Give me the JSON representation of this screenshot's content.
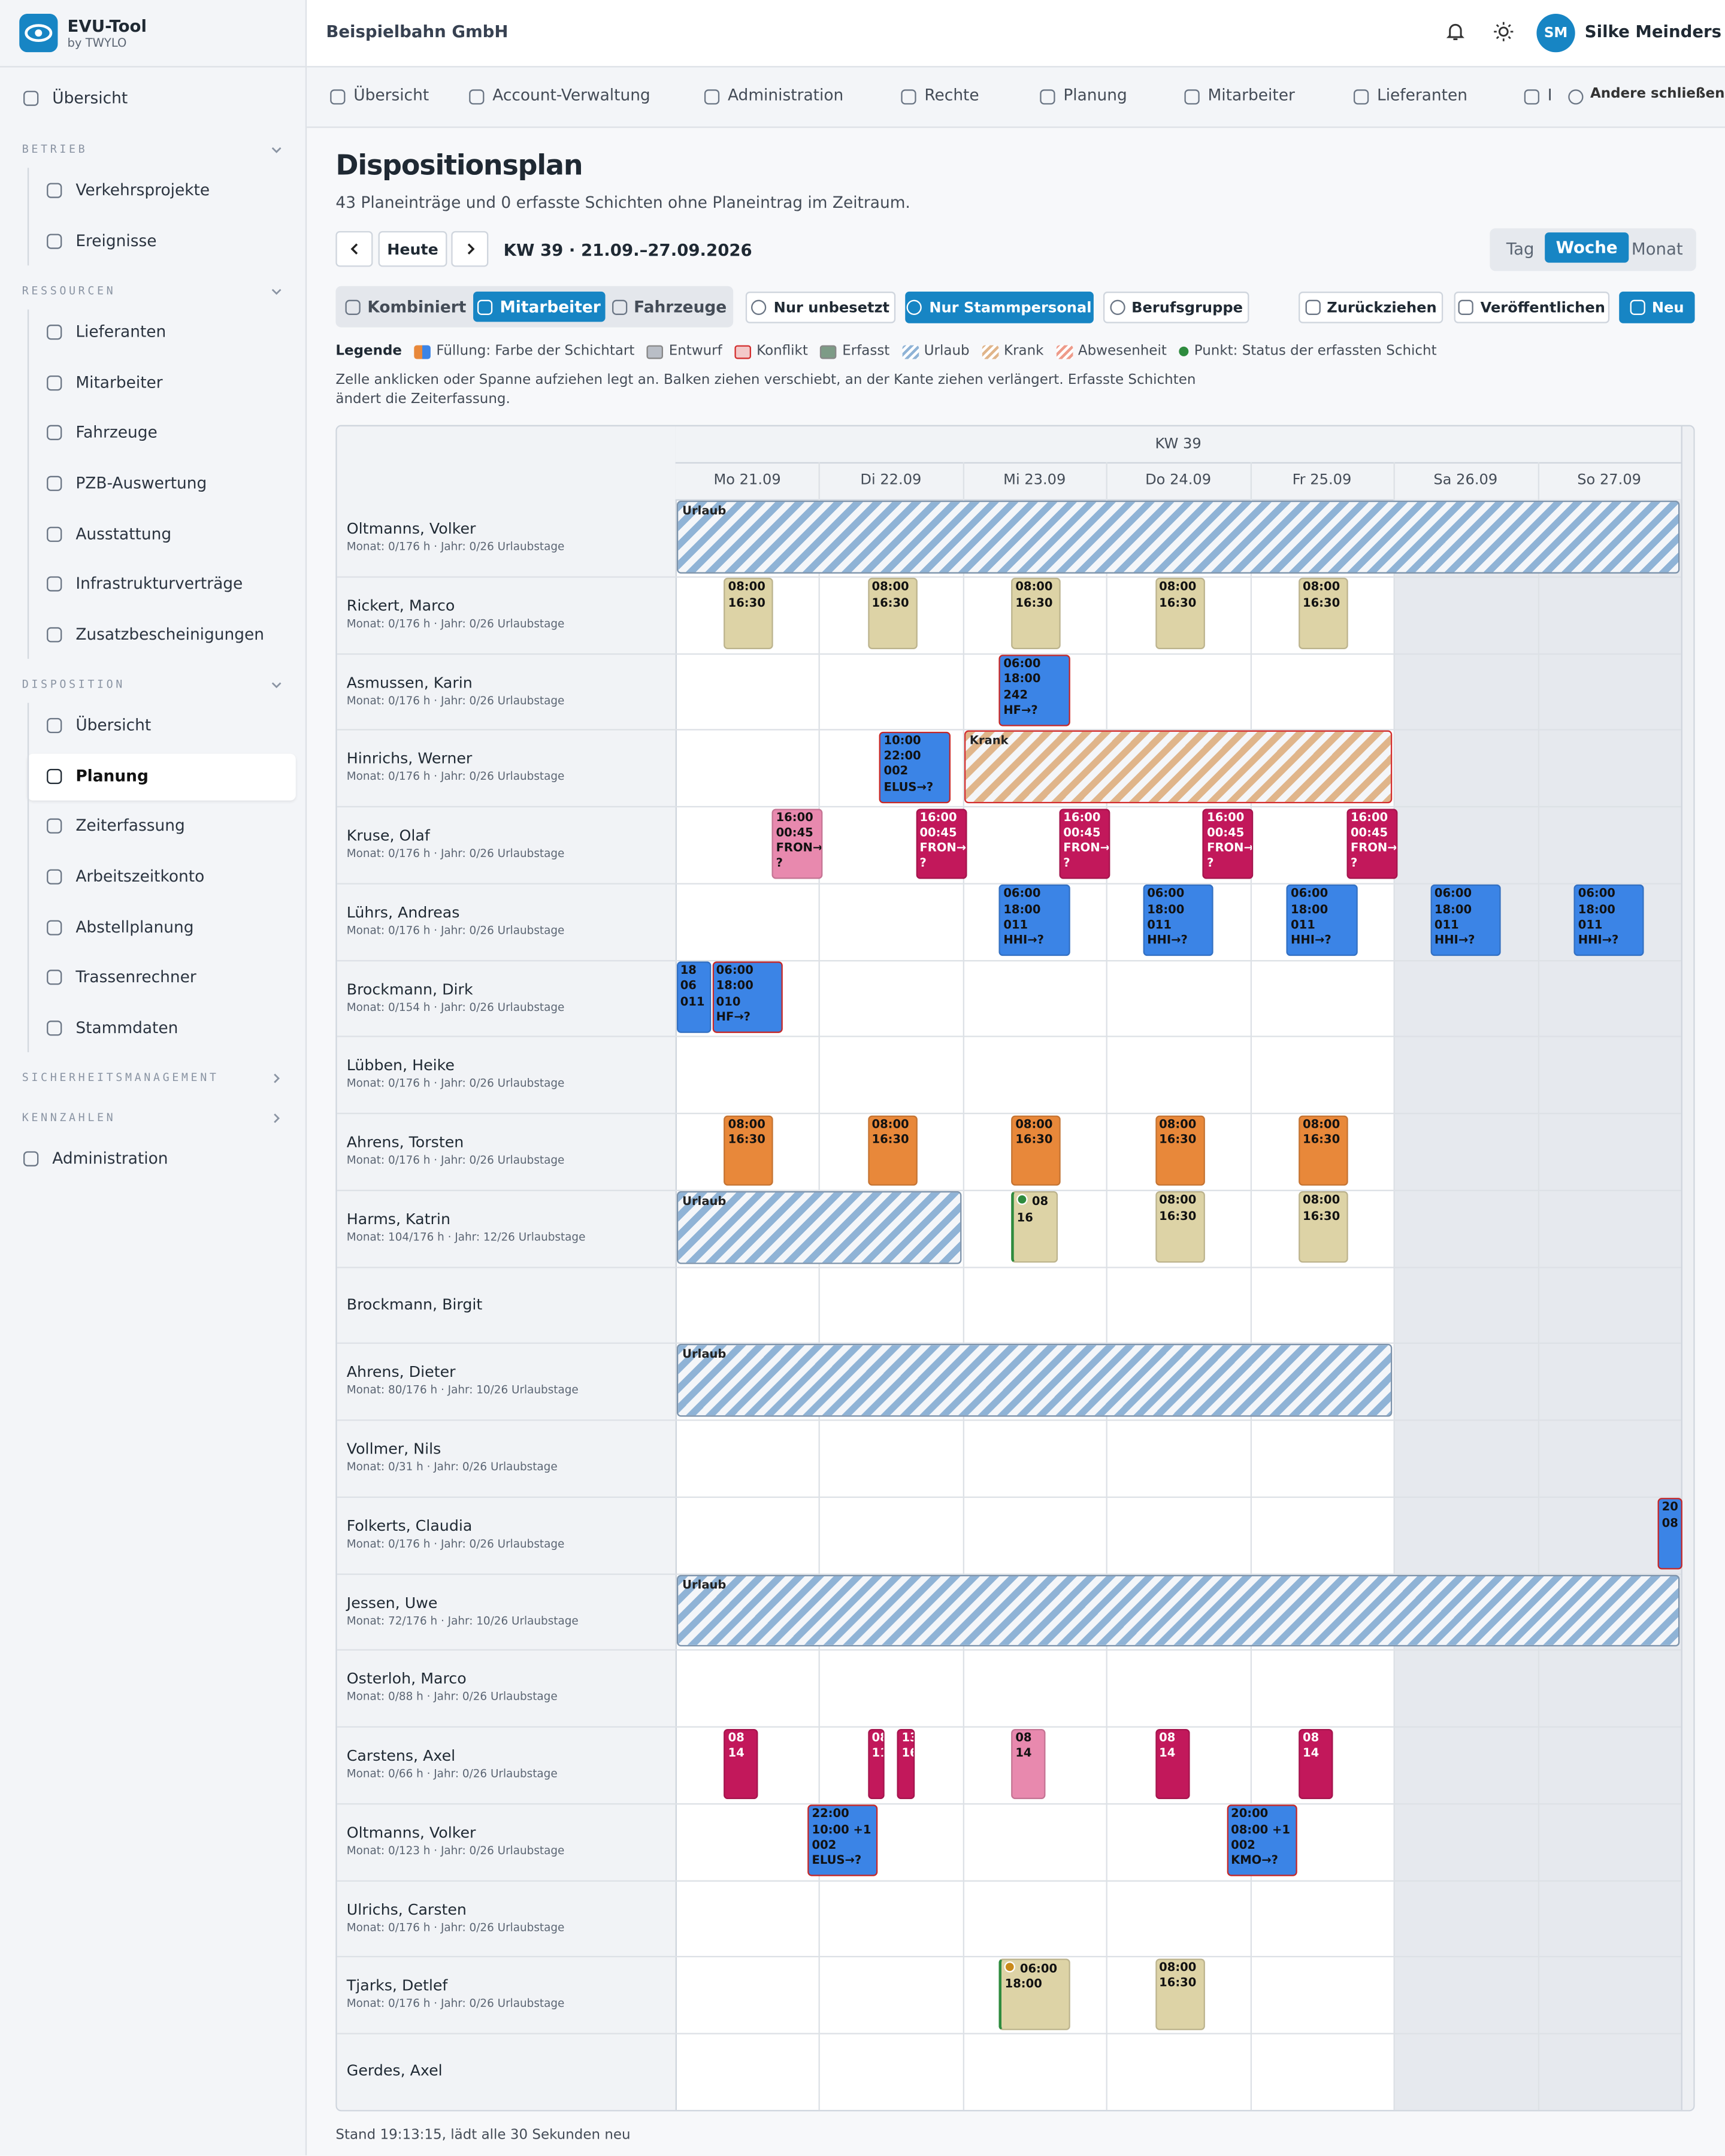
{
  "sidebar": {
    "brand": "EVU-Tool",
    "brand_sub": "by TWYLO",
    "top": "Übersicht",
    "sections": [
      {
        "title": "BETRIEB",
        "items": [
          "Verkehrsprojekte",
          "Ereignisse"
        ]
      },
      {
        "title": "RESSOURCEN",
        "items": [
          "Lieferanten",
          "Mitarbeiter",
          "Fahrzeuge",
          "PZB-Auswertung",
          "Ausstattung",
          "Infrastrukturverträge",
          "Zusatzbescheinigungen"
        ]
      },
      {
        "title": "DISPOSITION",
        "items": [
          "Übersicht",
          "Planung",
          "Zeiterfassung",
          "Arbeitszeitkonto",
          "Abstellplanung",
          "Trassenrechner",
          "Stammdaten"
        ],
        "active": 1
      },
      {
        "title": "SICHERHEITSMANAGEMENT",
        "items": []
      },
      {
        "title": "KENNZAHLEN",
        "items": []
      }
    ],
    "bottom": "Administration"
  },
  "header": {
    "company": "Beispielbahn GmbH",
    "initials": "SM",
    "user": "Silke Meinders"
  },
  "tabs": [
    "Übersicht",
    "Account-Verwaltung",
    "Administration",
    "Rechte",
    "Planung",
    "Mitarbeiter",
    "Lieferanten",
    "I"
  ],
  "close_others": "Andere schließen",
  "page": {
    "title": "Dispositionsplan",
    "subtitle": "43 Planeinträge und 0 erfasste Schichten ohne Planeintrag im Zeitraum.",
    "today": "Heute",
    "range": "KW 39 · 21.09.–27.09.2026",
    "views": [
      "Tag",
      "Woche",
      "Monat"
    ],
    "active_view": 1,
    "modes": [
      "Kombiniert",
      "Mitarbeiter",
      "Fahrzeuge"
    ],
    "active_mode": 1,
    "filters": [
      "Nur unbesetzt",
      "Nur Stammpersonal",
      "Berufsgruppe"
    ],
    "active_filter": 1,
    "actions": [
      "Zurückziehen",
      "Veröffentlichen",
      "Neu"
    ],
    "legend_title": "Legende",
    "legend": [
      {
        "label": "Füllung: Farbe der Schichtart",
        "style": "split",
        "color": "#e8883a"
      },
      {
        "label": "Entwurf",
        "style": "solid",
        "color": "#b9bec6"
      },
      {
        "label": "Konflikt",
        "style": "border",
        "color": "#d32f2f"
      },
      {
        "label": "Erfasst",
        "style": "solid",
        "color": "#7d9b86"
      },
      {
        "label": "Urlaub",
        "style": "stripes",
        "color": "#8fb3d6"
      },
      {
        "label": "Krank",
        "style": "stripes",
        "color": "#e0b58a"
      },
      {
        "label": "Abwesenheit",
        "style": "stripes",
        "color": "#ee9b8a"
      },
      {
        "label": "Punkt: Status der erfassten Schicht",
        "style": "dot",
        "color": "#2e8b3e"
      }
    ],
    "hint": "Zelle anklicken oder Spanne aufziehen legt an. Balken ziehen verschiebt, an der Kante ziehen verlängert. Erfasste Schichten ändert die Zeiterfassung."
  },
  "grid": {
    "week": "KW 39",
    "days": [
      "Mo 21.09",
      "Di 22.09",
      "Mi 23.09",
      "Do 24.09",
      "Fr 25.09",
      "Sa 26.09",
      "So 27.09"
    ],
    "rows": [
      {
        "name": "Oltmanns, Volker",
        "info": "Monat: 0/176 h · Jahr: 0/26 Urlaubstage",
        "spans": [
          {
            "label": "Urlaub",
            "from": 0,
            "to": 6,
            "color": "#8fb3d6"
          }
        ]
      },
      {
        "name": "Rickert, Marco",
        "info": "Monat: 0/176 h · Jahr: 0/26 Urlaubstage",
        "shifts": [
          {
            "day": 0,
            "lines": [
              "08:00",
              "16:30"
            ],
            "color": "#ddd3a6"
          },
          {
            "day": 1,
            "lines": [
              "08:00",
              "16:30"
            ],
            "color": "#ddd3a6"
          },
          {
            "day": 2,
            "lines": [
              "08:00",
              "16:30"
            ],
            "color": "#ddd3a6"
          },
          {
            "day": 3,
            "lines": [
              "08:00",
              "16:30"
            ],
            "color": "#ddd3a6"
          },
          {
            "day": 4,
            "lines": [
              "08:00",
              "16:30"
            ],
            "color": "#ddd3a6"
          }
        ]
      },
      {
        "name": "Asmussen, Karin",
        "info": "Monat: 0/176 h · Jahr: 0/26 Urlaubstage",
        "shifts": [
          {
            "day": 2,
            "lines": [
              "06:00",
              "18:00",
              "242",
              "HF→?"
            ],
            "color": "#3b84e6",
            "conflict": true
          }
        ]
      },
      {
        "name": "Hinrichs, Werner",
        "info": "Monat: 0/176 h · Jahr: 0/26 Urlaubstage",
        "shifts": [
          {
            "day": 1,
            "lines": [
              "10:00",
              "22:00",
              "002",
              "ELUS→?"
            ],
            "color": "#3b84e6",
            "conflict": true
          }
        ],
        "spans": [
          {
            "label": "Krank",
            "from": 2,
            "to": 4,
            "color": "#e0b58a",
            "conflict": true
          }
        ]
      },
      {
        "name": "Kruse, Olaf",
        "info": "Monat: 0/176 h · Jahr: 0/26 Urlaubstage",
        "shifts": [
          {
            "day": 0,
            "lines": [
              "16:00",
              "00:45",
              "FRON→",
              "?"
            ],
            "color": "#e889ae"
          },
          {
            "day": 1,
            "lines": [
              "16:00",
              "00:45",
              "FRON→",
              "?"
            ],
            "color": "#c2185b"
          },
          {
            "day": 2,
            "lines": [
              "16:00",
              "00:45",
              "FRON→",
              "?"
            ],
            "color": "#c2185b"
          },
          {
            "day": 3,
            "lines": [
              "16:00",
              "00:45",
              "FRON→",
              "?"
            ],
            "color": "#c2185b"
          },
          {
            "day": 4,
            "lines": [
              "16:00",
              "00:45",
              "FRON→",
              "?"
            ],
            "color": "#c2185b"
          }
        ]
      },
      {
        "name": "Lührs, Andreas",
        "info": "Monat: 0/176 h · Jahr: 0/26 Urlaubstage",
        "shifts": [
          {
            "day": 2,
            "lines": [
              "06:00",
              "18:00",
              "011",
              "HHI→?"
            ],
            "color": "#3b84e6"
          },
          {
            "day": 3,
            "lines": [
              "06:00",
              "18:00",
              "011",
              "HHI→?"
            ],
            "color": "#3b84e6"
          },
          {
            "day": 4,
            "lines": [
              "06:00",
              "18:00",
              "011",
              "HHI→?"
            ],
            "color": "#3b84e6"
          },
          {
            "day": 5,
            "lines": [
              "06:00",
              "18:00",
              "011",
              "HHI→?"
            ],
            "color": "#3b84e6"
          },
          {
            "day": 6,
            "lines": [
              "06:00",
              "18:00",
              "011",
              "HHI→?"
            ],
            "color": "#3b84e6"
          }
        ]
      },
      {
        "name": "Brockmann, Dirk",
        "info": "Monat: 0/154 h · Jahr: 0/26 Urlaubstage",
        "shifts": [
          {
            "day": -1,
            "lines": [
              "18",
              "06",
              "011"
            ],
            "color": "#3b84e6"
          },
          {
            "day": 0,
            "lines": [
              "06:00",
              "18:00",
              "010",
              "HF→?"
            ],
            "color": "#3b84e6",
            "conflict": true
          }
        ]
      },
      {
        "name": "Lübben, Heike",
        "info": "Monat: 0/176 h · Jahr: 0/26 Urlaubstage"
      },
      {
        "name": "Ahrens, Torsten",
        "info": "Monat: 0/176 h · Jahr: 0/26 Urlaubstage",
        "shifts": [
          {
            "day": 0,
            "lines": [
              "08:00",
              "16:30"
            ],
            "color": "#e8883a"
          },
          {
            "day": 1,
            "lines": [
              "08:00",
              "16:30"
            ],
            "color": "#e8883a"
          },
          {
            "day": 2,
            "lines": [
              "08:00",
              "16:30"
            ],
            "color": "#e8883a"
          },
          {
            "day": 3,
            "lines": [
              "08:00",
              "16:30"
            ],
            "color": "#e8883a"
          },
          {
            "day": 4,
            "lines": [
              "08:00",
              "16:30"
            ],
            "color": "#e8883a"
          }
        ]
      },
      {
        "name": "Harms, Katrin",
        "info": "Monat: 104/176 h · Jahr: 12/26 Urlaubstage",
        "spans": [
          {
            "label": "Urlaub",
            "from": 0,
            "to": 1,
            "color": "#8fb3d6"
          }
        ],
        "shifts": [
          {
            "day": 2,
            "lines": [
              "08",
              "16"
            ],
            "color": "#ddd3a6",
            "status": "#2e8b3e"
          },
          {
            "day": 3,
            "lines": [
              "08:00",
              "16:30"
            ],
            "color": "#ddd3a6"
          },
          {
            "day": 4,
            "lines": [
              "08:00",
              "16:30"
            ],
            "color": "#ddd3a6"
          }
        ]
      },
      {
        "name": "Brockmann, Birgit"
      },
      {
        "name": "Ahrens, Dieter",
        "info": "Monat: 80/176 h · Jahr: 10/26 Urlaubstage",
        "spans": [
          {
            "label": "Urlaub",
            "from": 0,
            "to": 4,
            "color": "#8fb3d6"
          }
        ]
      },
      {
        "name": "Vollmer, Nils",
        "info": "Monat: 0/31 h · Jahr: 0/26 Urlaubstage"
      },
      {
        "name": "Folkerts, Claudia",
        "info": "Monat: 0/176 h · Jahr: 0/26 Urlaubstage",
        "shifts": [
          {
            "day": 6,
            "lines": [
              "20",
              "08"
            ],
            "color": "#3b84e6",
            "conflict": true
          }
        ]
      },
      {
        "name": "Jessen, Uwe",
        "info": "Monat: 72/176 h · Jahr: 10/26 Urlaubstage",
        "spans": [
          {
            "label": "Urlaub",
            "from": 0,
            "to": 6,
            "color": "#8fb3d6"
          }
        ]
      },
      {
        "name": "Osterloh, Marco",
        "info": "Monat: 0/88 h · Jahr: 0/26 Urlaubstage"
      },
      {
        "name": "Carstens, Axel",
        "info": "Monat: 0/66 h · Jahr: 0/26 Urlaubstage",
        "shifts": [
          {
            "day": 0,
            "lines": [
              "08",
              "14"
            ],
            "color": "#c2185b"
          },
          {
            "day": 1,
            "lines": [
              "08",
              "11"
            ],
            "color": "#c2185b"
          },
          {
            "day": 1,
            "lines": [
              "13",
              "16"
            ],
            "color": "#c2185b"
          },
          {
            "day": 2,
            "lines": [
              "08",
              "14"
            ],
            "color": "#e889ae"
          },
          {
            "day": 3,
            "lines": [
              "08",
              "14"
            ],
            "color": "#c2185b"
          },
          {
            "day": 4,
            "lines": [
              "08",
              "14"
            ],
            "color": "#c2185b"
          }
        ]
      },
      {
        "name": "Oltmanns, Volker",
        "info": "Monat: 0/123 h · Jahr: 0/26 Urlaubstage",
        "shifts": [
          {
            "day": 0,
            "lines": [
              "22:00",
              "10:00 +1",
              "002",
              "ELUS→?"
            ],
            "color": "#3b84e6",
            "conflict": true
          },
          {
            "day": 3,
            "lines": [
              "20:00",
              "08:00 +1",
              "002",
              "KMO→?"
            ],
            "color": "#3b84e6",
            "conflict": true
          }
        ]
      },
      {
        "name": "Ulrichs, Carsten",
        "info": "Monat: 0/176 h · Jahr: 0/26 Urlaubstage"
      },
      {
        "name": "Tjarks, Detlef",
        "info": "Monat: 0/176 h · Jahr: 0/26 Urlaubstage",
        "shifts": [
          {
            "day": 2,
            "lines": [
              "06:00",
              "18:00"
            ],
            "color": "#ddd3a6",
            "status": "#c98a1b"
          },
          {
            "day": 3,
            "lines": [
              "08:00",
              "16:30"
            ],
            "color": "#ddd3a6"
          }
        ]
      },
      {
        "name": "Gerdes, Axel"
      }
    ]
  },
  "footer": "Stand 19:13:15, lädt alle 30 Sekunden neu"
}
